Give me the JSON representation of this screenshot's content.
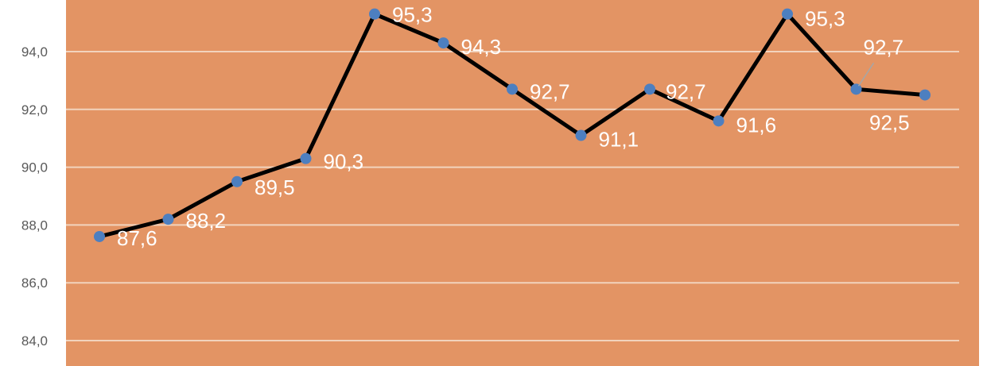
{
  "chart_data": {
    "type": "line",
    "x": [
      1,
      2,
      3,
      4,
      5,
      6,
      7,
      8,
      9,
      10,
      11,
      12,
      13
    ],
    "series": [
      {
        "values": [
          87.6,
          88.2,
          89.5,
          90.3,
          95.3,
          94.3,
          92.7,
          91.1,
          92.7,
          91.6,
          95.3,
          92.7,
          92.5
        ],
        "labels": [
          "87,6",
          "88,2",
          "89,5",
          "90,3",
          "95,3",
          "94,3",
          "92,7",
          "91,1",
          "92,7",
          "91,6",
          "95,3",
          "92,7",
          "92,5"
        ]
      }
    ],
    "yticks": [
      84,
      86,
      88,
      90,
      92,
      94
    ],
    "ytick_labels": [
      "84,0",
      "86,0",
      "88,0",
      "90,0",
      "92,0",
      "94,0"
    ],
    "ylim": [
      83.0,
      96.0
    ],
    "grid": true,
    "colors": {
      "background": "#e39464",
      "line": "#000000",
      "marker": "#4d7fc0",
      "gridline": "#f2d3bd",
      "data_label": "#ffffff",
      "tick_label": "#595959"
    }
  }
}
